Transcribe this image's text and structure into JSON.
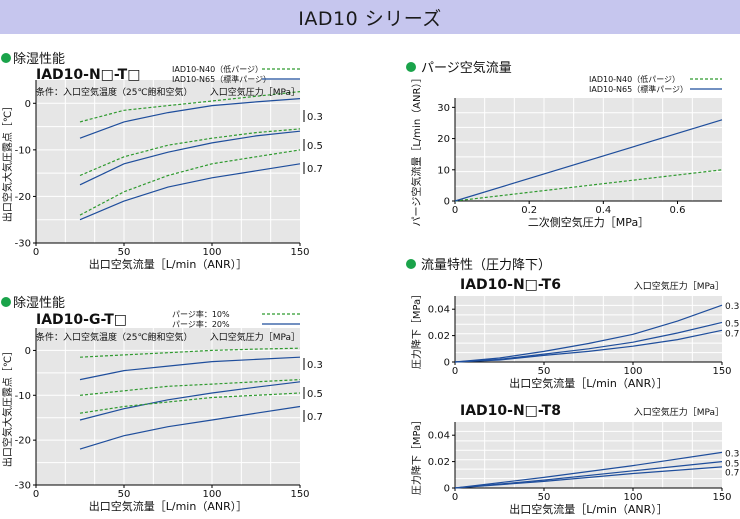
{
  "banner": {
    "title": "IAD10 シリーズ"
  },
  "colors": {
    "banner_bg": "#c6c6ee",
    "solid_line": "#1f4e9c",
    "dashed_line": "#2f9a2f",
    "bullet": "#1aa34a",
    "plot_bg": "#e6e6e6",
    "grid": "#ffffff"
  },
  "chart_data": [
    {
      "id": "dehum_n",
      "type": "line",
      "section": "除湿性能",
      "model": "IAD10-N□-T□",
      "condition": "条件：入口空気温度（25℃飽和空気）",
      "legend": [
        {
          "name": "IAD10-N40（低パージ）",
          "style": "dashed"
        },
        {
          "name": "IAD10-N65（標準パージ）",
          "style": "solid"
        }
      ],
      "pressure_header": "入口空気圧力［MPa］",
      "pressure_labels": [
        "0.3",
        "0.5",
        "0.7"
      ],
      "xlabel": "出口空気流量［L/min（ANR）］",
      "ylabel": "出口空気大気圧露点［℃］",
      "xlim": [
        0,
        150
      ],
      "ylim": [
        -30,
        5
      ],
      "xticks": [
        0,
        50,
        100,
        150
      ],
      "yticks": [
        0,
        -10,
        -20,
        -30
      ],
      "series": [
        {
          "style": "dashed",
          "x": [
            25,
            50,
            75,
            100,
            125,
            150
          ],
          "y": [
            -4,
            -1.5,
            -0.5,
            0.5,
            1.5,
            2.5
          ]
        },
        {
          "style": "solid",
          "x": [
            25,
            50,
            75,
            100,
            125,
            150
          ],
          "y": [
            -7.5,
            -4,
            -2,
            -0.5,
            0.3,
            1
          ]
        },
        {
          "style": "dashed",
          "x": [
            25,
            50,
            75,
            100,
            125,
            150
          ],
          "y": [
            -15.5,
            -11.5,
            -9,
            -7.5,
            -6.3,
            -5.5
          ]
        },
        {
          "style": "solid",
          "x": [
            25,
            50,
            75,
            100,
            125,
            150
          ],
          "y": [
            -17.5,
            -13,
            -10.5,
            -8.5,
            -7,
            -6
          ]
        },
        {
          "style": "dashed",
          "x": [
            25,
            50,
            75,
            100,
            125,
            150
          ],
          "y": [
            -24,
            -19,
            -15.5,
            -13,
            -11.5,
            -10
          ]
        },
        {
          "style": "solid",
          "x": [
            25,
            50,
            75,
            100,
            125,
            150
          ],
          "y": [
            -25,
            -21,
            -18,
            -16,
            -14.5,
            -13
          ]
        }
      ]
    },
    {
      "id": "dehum_g",
      "type": "line",
      "section": "除湿性能",
      "model": "IAD10-G-T□",
      "condition": "条件：入口空気温度（25℃飽和空気）",
      "legend": [
        {
          "name": "パージ率：10%",
          "style": "dashed"
        },
        {
          "name": "パージ率：20%",
          "style": "solid"
        }
      ],
      "pressure_header": "入口空気圧力［MPa］",
      "pressure_labels": [
        "0.3",
        "0.5",
        "0.7"
      ],
      "xlabel": "出口空気流量［L/min（ANR）］",
      "ylabel": "出口空気大気圧露点［℃］",
      "xlim": [
        0,
        150
      ],
      "ylim": [
        -30,
        5
      ],
      "xticks": [
        0,
        50,
        100,
        150
      ],
      "yticks": [
        0,
        -10,
        -20,
        -30
      ],
      "series": [
        {
          "style": "dashed",
          "x": [
            25,
            50,
            75,
            100,
            125,
            150
          ],
          "y": [
            -1.5,
            -1,
            -0.5,
            0,
            0.3,
            0.5
          ]
        },
        {
          "style": "solid",
          "x": [
            25,
            50,
            75,
            100,
            125,
            150
          ],
          "y": [
            -6.5,
            -4.5,
            -3.5,
            -2.5,
            -2,
            -1.5
          ]
        },
        {
          "style": "dashed",
          "x": [
            25,
            50,
            75,
            100,
            125,
            150
          ],
          "y": [
            -10,
            -9,
            -8,
            -7.5,
            -7,
            -6.5
          ]
        },
        {
          "style": "solid",
          "x": [
            25,
            50,
            75,
            100,
            125,
            150
          ],
          "y": [
            -15.5,
            -13,
            -11,
            -9.5,
            -8.2,
            -7
          ]
        },
        {
          "style": "dashed",
          "x": [
            25,
            50,
            75,
            100,
            125,
            150
          ],
          "y": [
            -14,
            -12.5,
            -11.5,
            -10.5,
            -10,
            -9.5
          ]
        },
        {
          "style": "solid",
          "x": [
            25,
            50,
            75,
            100,
            125,
            150
          ],
          "y": [
            -22,
            -19,
            -17,
            -15.5,
            -14,
            -12.5
          ]
        }
      ]
    },
    {
      "id": "purge",
      "type": "line",
      "section": "パージ空気流量",
      "legend": [
        {
          "name": "IAD10-N40（低パージ）",
          "style": "dashed"
        },
        {
          "name": "IAD10-N65（標準パージ）",
          "style": "solid"
        }
      ],
      "xlabel": "二次側空気圧力［MPa］",
      "ylabel": "パージ空気流量［L/min（ANR）］",
      "xlim": [
        0,
        0.72
      ],
      "ylim": [
        0,
        33
      ],
      "xticks": [
        0,
        0.2,
        0.4,
        0.6
      ],
      "xticklabels": [
        "0",
        "0.2",
        "0.4",
        "0.6"
      ],
      "yticks": [
        0,
        10,
        20,
        30
      ],
      "series": [
        {
          "style": "dashed",
          "x": [
            0,
            0.72
          ],
          "y": [
            0,
            10
          ]
        },
        {
          "style": "solid",
          "x": [
            0,
            0.72
          ],
          "y": [
            0,
            26
          ]
        }
      ]
    },
    {
      "id": "flow_t6",
      "type": "line",
      "section": "流量特性（圧力降下）",
      "model": "IAD10-N□-T6",
      "pressure_header": "入口空気圧力［MPa］",
      "pressure_labels": [
        "0.3",
        "0.5",
        "0.7"
      ],
      "xlabel": "出口空気流量［L/min（ANR）］",
      "ylabel": "圧力降下［MPa］",
      "xlim": [
        0,
        150
      ],
      "ylim": [
        0,
        0.05
      ],
      "xticks": [
        0,
        50,
        100,
        150
      ],
      "yticks": [
        0,
        0.02,
        0.04
      ],
      "series": [
        {
          "style": "solid",
          "x": [
            0,
            25,
            50,
            75,
            100,
            125,
            150
          ],
          "y": [
            0,
            0.003,
            0.008,
            0.014,
            0.021,
            0.031,
            0.043
          ]
        },
        {
          "style": "solid",
          "x": [
            0,
            25,
            50,
            75,
            100,
            125,
            150
          ],
          "y": [
            0,
            0.002,
            0.006,
            0.01,
            0.015,
            0.022,
            0.03
          ]
        },
        {
          "style": "solid",
          "x": [
            0,
            25,
            50,
            75,
            100,
            125,
            150
          ],
          "y": [
            0,
            0.0015,
            0.005,
            0.008,
            0.012,
            0.017,
            0.024
          ]
        }
      ]
    },
    {
      "id": "flow_t8",
      "type": "line",
      "model": "IAD10-N□-T8",
      "pressure_header": "入口空気圧力［MPa］",
      "pressure_labels": [
        "0.3",
        "0.5",
        "0.7"
      ],
      "xlabel": "出口空気流量［L/min（ANR）］",
      "ylabel": "圧力降下［MPa］",
      "xlim": [
        0,
        150
      ],
      "ylim": [
        0,
        0.05
      ],
      "xticks": [
        0,
        50,
        100,
        150
      ],
      "yticks": [
        0,
        0.02,
        0.04
      ],
      "series": [
        {
          "style": "solid",
          "x": [
            0,
            50,
            100,
            150
          ],
          "y": [
            0,
            0.008,
            0.017,
            0.027
          ]
        },
        {
          "style": "solid",
          "x": [
            0,
            50,
            100,
            150
          ],
          "y": [
            0,
            0.006,
            0.013,
            0.02
          ]
        },
        {
          "style": "solid",
          "x": [
            0,
            50,
            100,
            150
          ],
          "y": [
            0,
            0.005,
            0.011,
            0.016
          ]
        }
      ]
    }
  ]
}
